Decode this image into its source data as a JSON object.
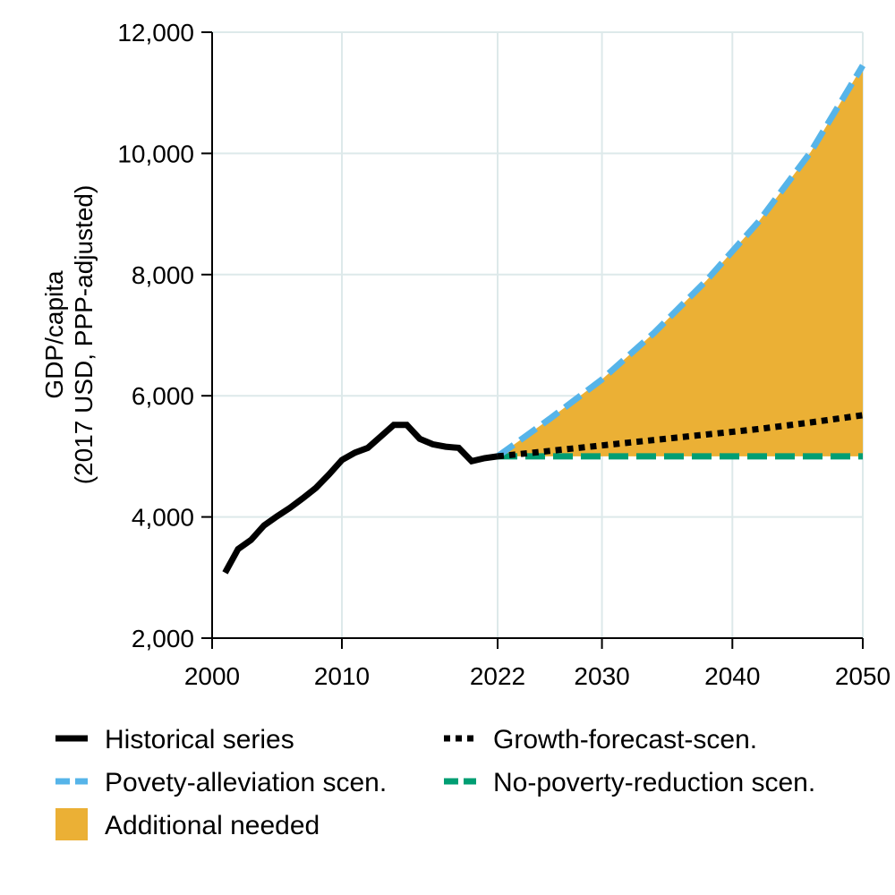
{
  "chart_data": {
    "type": "line",
    "title": "",
    "xlabel": "",
    "ylabel_lines": [
      "GDP/capita",
      "(2017 USD, PPP-adjusted)"
    ],
    "xlim": [
      2000,
      2050
    ],
    "ylim": [
      2000,
      12000
    ],
    "x_ticks": [
      2000,
      2010,
      2022,
      2030,
      2040,
      2050
    ],
    "y_ticks": [
      2000,
      4000,
      6000,
      8000,
      10000,
      12000
    ],
    "y_tick_labels": [
      "2,000",
      "4,000",
      "6,000",
      "8,000",
      "10,000",
      "12,000"
    ],
    "grid": true,
    "legend_position": "bottom",
    "series": [
      {
        "name": "Historical series",
        "style": "solid",
        "color": "#000000",
        "x": [
          2001,
          2002,
          2003,
          2004,
          2005,
          2006,
          2007,
          2008,
          2009,
          2010,
          2011,
          2012,
          2013,
          2014,
          2015,
          2016,
          2017,
          2018,
          2019,
          2020,
          2021,
          2022
        ],
        "y": [
          3080,
          3470,
          3620,
          3860,
          4010,
          4150,
          4310,
          4480,
          4700,
          4940,
          5060,
          5140,
          5330,
          5520,
          5520,
          5290,
          5200,
          5160,
          5140,
          4920,
          4970,
          5000
        ]
      },
      {
        "name": "Growth-forecast-scen.",
        "style": "dotted",
        "color": "#000000",
        "x": [
          2022,
          2026,
          2030,
          2034,
          2038,
          2042,
          2046,
          2050
        ],
        "y": [
          5000,
          5090,
          5180,
          5270,
          5360,
          5450,
          5560,
          5680
        ]
      },
      {
        "name": "Povety-alleviation scen.",
        "style": "dashed",
        "color": "#56B4E9",
        "x": [
          2022,
          2026,
          2030,
          2034,
          2038,
          2042,
          2046,
          2050
        ],
        "y": [
          5000,
          5620,
          6270,
          7040,
          7900,
          8870,
          10020,
          11450
        ]
      },
      {
        "name": "No-poverty-reduction scen.",
        "style": "dashed",
        "color": "#009E73",
        "x": [
          2022,
          2050
        ],
        "y": [
          5000,
          5000
        ]
      }
    ],
    "area": {
      "name": "Additional needed",
      "color": "#EBB035",
      "x": [
        2022,
        2026,
        2030,
        2034,
        2038,
        2042,
        2046,
        2050
      ],
      "upper": [
        5000,
        5620,
        6270,
        7040,
        7900,
        8870,
        10020,
        11450
      ],
      "lower": [
        5000,
        5000,
        5000,
        5000,
        5000,
        5000,
        5000,
        5000
      ]
    },
    "legend": [
      {
        "label": "Historical series",
        "key": "solid",
        "color": "#000000"
      },
      {
        "label": "Growth-forecast-scen.",
        "key": "dotted",
        "color": "#000000"
      },
      {
        "label": "Povety-alleviation scen.",
        "key": "dashed",
        "color": "#56B4E9"
      },
      {
        "label": "No-poverty-reduction scen.",
        "key": "dashed",
        "color": "#009E73"
      },
      {
        "label": "Additional needed",
        "key": "fill",
        "color": "#EBB035"
      }
    ]
  }
}
